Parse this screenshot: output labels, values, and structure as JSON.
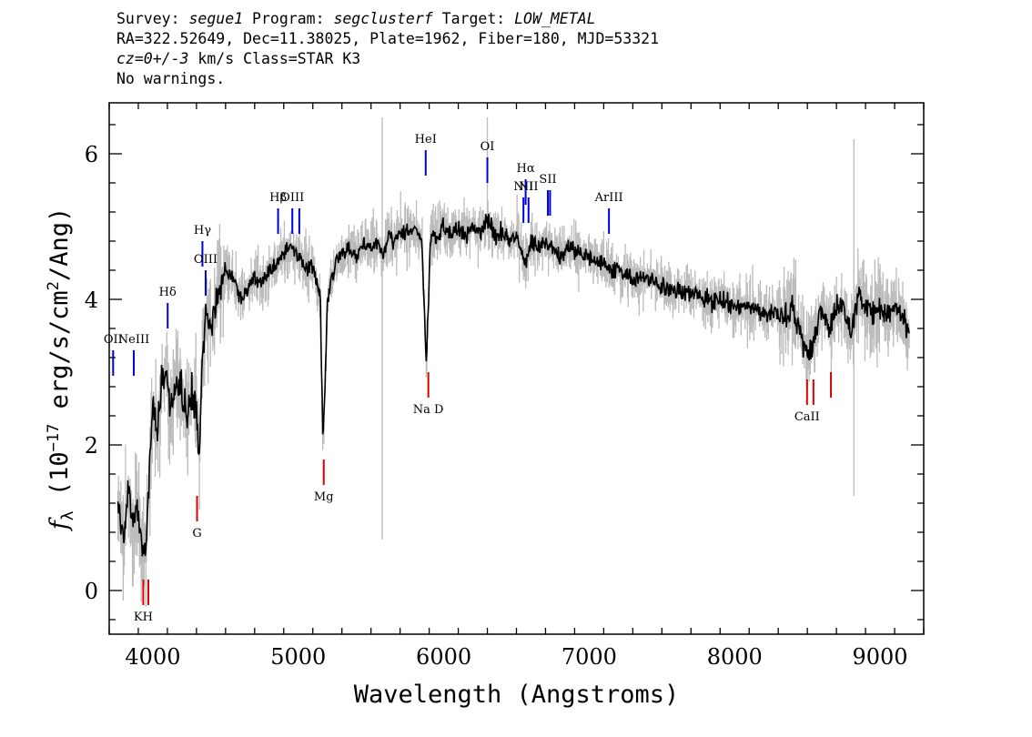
{
  "header": {
    "line1": {
      "survey_label": "Survey: ",
      "survey": "segue1",
      "program_label": " Program: ",
      "program": "segclusterf",
      "target_label": " Target: ",
      "target": "LOW_METAL"
    },
    "line2": "RA=322.52649, Dec=11.38025, Plate=1962, Fiber=180, MJD=53321",
    "line3": {
      "redshift": "cz=0+/-3",
      "rest": " km/s Class=STAR K3"
    },
    "line4": "No warnings."
  },
  "chart_data": {
    "type": "line",
    "title": "",
    "xlabel": "Wavelength (Angstroms)",
    "ylabel": "f_λ (10^-17 erg/s/cm^2/Ang)",
    "ylabel_parts": {
      "f": "f",
      "sub": "λ",
      "a": " (10",
      "sup1": "−17",
      "b": " erg/s/cm",
      "sup2": "2",
      "c": "/Ang)"
    },
    "xlim": [
      3700,
      9300
    ],
    "ylim": [
      -0.6,
      6.7
    ],
    "x_ticks": [
      4000,
      5000,
      6000,
      7000,
      8000,
      9000
    ],
    "x_tick_labels": [
      "4000",
      "5000",
      "6000",
      "7000",
      "8000",
      "9000"
    ],
    "y_ticks": [
      0,
      2,
      4,
      6
    ],
    "y_tick_labels": [
      "0",
      "2",
      "4",
      "6"
    ],
    "grid": false,
    "series": [
      {
        "color": "#000000",
        "x": [
          3770,
          3800,
          3830,
          3860,
          3890,
          3920,
          3950,
          3970,
          4000,
          4030,
          4060,
          4090,
          4120,
          4150,
          4180,
          4210,
          4240,
          4270,
          4300,
          4320,
          4340,
          4370,
          4400,
          4430,
          4460,
          4500,
          4550,
          4600,
          4650,
          4700,
          4750,
          4800,
          4850,
          4900,
          4950,
          5000,
          5050,
          5100,
          5150,
          5170,
          5185,
          5200,
          5230,
          5260,
          5300,
          5350,
          5400,
          5450,
          5500,
          5550,
          5580,
          5620,
          5650,
          5700,
          5750,
          5800,
          5850,
          5880,
          5895,
          5910,
          5950,
          6000,
          6050,
          6100,
          6150,
          6200,
          6250,
          6300,
          6350,
          6400,
          6450,
          6500,
          6563,
          6600,
          6650,
          6700,
          6750,
          6800,
          6850,
          6900,
          6950,
          7000,
          7050,
          7100,
          7150,
          7200,
          7300,
          7400,
          7500,
          7600,
          7700,
          7800,
          7900,
          8000,
          8100,
          8200,
          8300,
          8400,
          8450,
          8498,
          8542,
          8600,
          8662,
          8700,
          8750,
          8800,
          8850,
          8900,
          8950,
          9000,
          9050,
          9100,
          9150,
          9200
        ],
        "y": [
          1.1,
          0.7,
          1.4,
          0.9,
          1.2,
          0.6,
          0.5,
          1.3,
          2.6,
          2.2,
          2.8,
          3.0,
          2.5,
          2.8,
          2.9,
          2.6,
          2.4,
          2.8,
          2.5,
          1.8,
          3.2,
          3.8,
          3.6,
          3.9,
          4.2,
          4.4,
          4.3,
          4.0,
          4.1,
          4.3,
          4.2,
          4.4,
          4.5,
          4.6,
          4.7,
          4.6,
          4.5,
          4.4,
          4.1,
          2.0,
          2.9,
          4.0,
          4.3,
          4.5,
          4.6,
          4.7,
          4.6,
          4.8,
          4.7,
          4.8,
          4.6,
          4.9,
          4.8,
          4.9,
          4.9,
          5.0,
          4.8,
          3.1,
          4.0,
          4.9,
          4.9,
          5.0,
          4.9,
          5.0,
          4.9,
          5.0,
          4.9,
          5.1,
          4.9,
          4.9,
          4.8,
          4.9,
          4.5,
          4.8,
          4.7,
          4.8,
          4.7,
          4.6,
          4.7,
          4.7,
          4.6,
          4.6,
          4.5,
          4.5,
          4.4,
          4.4,
          4.3,
          4.3,
          4.2,
          4.1,
          4.1,
          4.0,
          4.0,
          3.9,
          3.9,
          3.8,
          3.8,
          3.8,
          3.6,
          3.3,
          3.4,
          3.9,
          3.6,
          3.9,
          3.9,
          3.5,
          4.1,
          3.9,
          3.8,
          3.9,
          3.8,
          3.9,
          3.8,
          3.6
        ]
      }
    ],
    "emission_lines": [
      {
        "label": "OII",
        "x": 3727,
        "y_bottom": 2.95,
        "y_top": 3.3,
        "color": "#0000dd"
      },
      {
        "label": "NeIII",
        "x": 3869,
        "y_bottom": 2.95,
        "y_top": 3.3,
        "color": "#0000dd"
      },
      {
        "label": "Hδ",
        "x": 4102,
        "y_bottom": 3.6,
        "y_top": 3.95,
        "color": "#0000dd"
      },
      {
        "label": "Hγ",
        "x": 4341,
        "y_bottom": 4.45,
        "y_top": 4.8,
        "color": "#0000dd"
      },
      {
        "label": "OIII",
        "x": 4363,
        "y_bottom": 4.05,
        "y_top": 4.4,
        "color": "#0000dd"
      },
      {
        "label": "Hβ",
        "x": 4861,
        "y_bottom": 4.9,
        "y_top": 5.25,
        "color": "#0000dd"
      },
      {
        "label": "OIII",
        "x": 4959,
        "y_bottom": 4.9,
        "y_top": 5.25,
        "color": "#0000dd"
      },
      {
        "label": "",
        "x": 5007,
        "y_bottom": 4.9,
        "y_top": 5.25,
        "color": "#0000dd"
      },
      {
        "label": "HeI",
        "x": 5876,
        "y_bottom": 5.7,
        "y_top": 6.05,
        "color": "#0000dd"
      },
      {
        "label": "OI",
        "x": 6300,
        "y_bottom": 5.6,
        "y_top": 5.95,
        "color": "#0000dd"
      },
      {
        "label": "NII",
        "x": 6548,
        "y_bottom": 5.05,
        "y_top": 5.4,
        "color": "#0000dd"
      },
      {
        "label": "Hα",
        "x": 6563,
        "y_bottom": 5.3,
        "y_top": 5.65,
        "color": "#0000dd"
      },
      {
        "label": "NII",
        "x": 6583,
        "y_bottom": 5.05,
        "y_top": 5.4,
        "color": "#0000dd"
      },
      {
        "label": "SII",
        "x": 6716,
        "y_bottom": 5.15,
        "y_top": 5.5,
        "color": "#0000dd"
      },
      {
        "label": "",
        "x": 6731,
        "y_bottom": 5.15,
        "y_top": 5.5,
        "color": "#0000dd"
      },
      {
        "label": "ArIII",
        "x": 7136,
        "y_bottom": 4.9,
        "y_top": 5.25,
        "color": "#0000dd"
      }
    ],
    "absorption_lines": [
      {
        "label": "KH",
        "x": 3934,
        "y_bottom": -0.2,
        "y_top": 0.15,
        "color": "#dd0000"
      },
      {
        "label": "",
        "x": 3969,
        "y_bottom": -0.2,
        "y_top": 0.15,
        "color": "#dd0000"
      },
      {
        "label": "G",
        "x": 4304,
        "y_bottom": 0.95,
        "y_top": 1.3,
        "color": "#dd0000"
      },
      {
        "label": "Mg",
        "x": 5175,
        "y_bottom": 1.45,
        "y_top": 1.8,
        "color": "#dd0000"
      },
      {
        "label": "Na D",
        "x": 5894,
        "y_bottom": 2.65,
        "y_top": 3.0,
        "color": "#dd0000"
      },
      {
        "label": "CaII",
        "x": 8498,
        "y_bottom": 2.55,
        "y_top": 2.9,
        "color": "#dd0000"
      },
      {
        "label": "",
        "x": 8542,
        "y_bottom": 2.55,
        "y_top": 2.9,
        "color": "#dd0000"
      },
      {
        "label": "",
        "x": 8662,
        "y_bottom": 2.65,
        "y_top": 3.0,
        "color": "#dd0000"
      }
    ],
    "noise_color": "#bbbbbb",
    "flux_color": "#000000"
  }
}
